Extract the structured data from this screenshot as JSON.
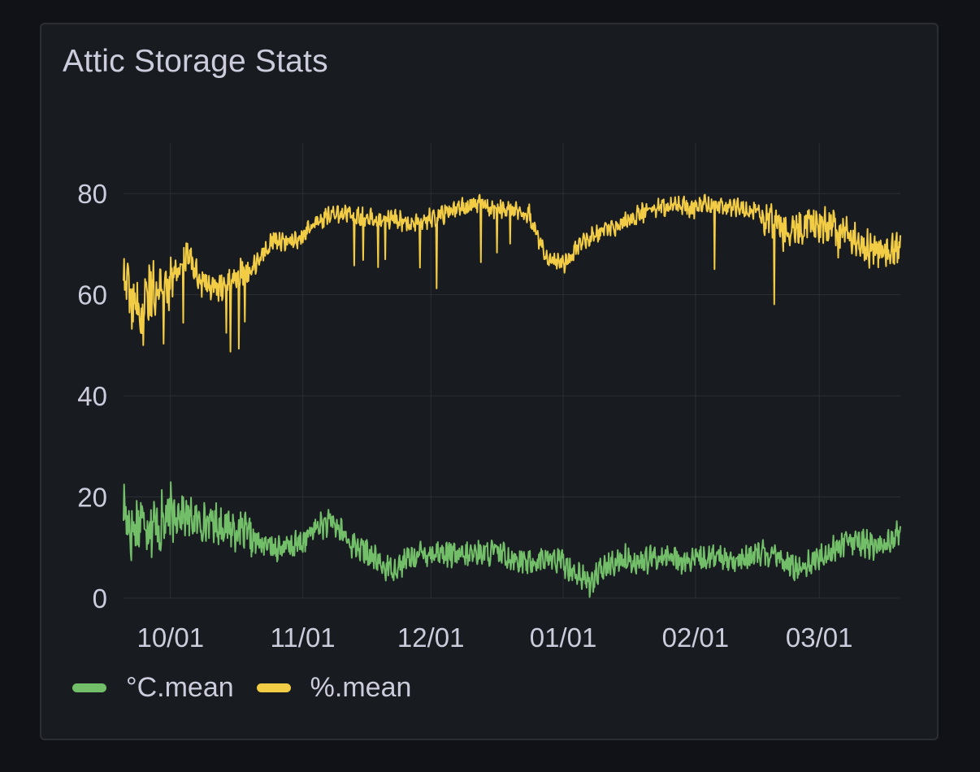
{
  "panel": {
    "title": "Attic Storage Stats"
  },
  "theme": {
    "background": "#111217",
    "panel_background": "#181b1f",
    "grid_color": "#2c2e33",
    "text_color": "#ccccdc"
  },
  "chart_data": {
    "type": "line",
    "title": "Attic Storage Stats",
    "xlabel": "",
    "ylabel": "",
    "x_start": "2023-09-20",
    "x_end": "2024-03-20",
    "x_ticks": [
      "10/01",
      "11/01",
      "12/01",
      "01/01",
      "02/01",
      "03/01"
    ],
    "x_tick_dates": [
      "2023-10-01",
      "2023-11-01",
      "2023-12-01",
      "2024-01-01",
      "2024-02-01",
      "2024-03-01"
    ],
    "y_ticks": [
      0,
      20,
      40,
      60,
      80
    ],
    "ylim": [
      0,
      90
    ],
    "grid": true,
    "legend_position": "bottom-left",
    "series": [
      {
        "name": "°C.mean",
        "color": "#73bf69",
        "x": [
          "2023-09-20",
          "2023-09-22",
          "2023-09-24",
          "2023-09-26",
          "2023-09-28",
          "2023-10-01",
          "2023-10-03",
          "2023-10-05",
          "2023-10-08",
          "2023-10-11",
          "2023-10-15",
          "2023-10-18",
          "2023-10-21",
          "2023-10-25",
          "2023-10-29",
          "2023-11-01",
          "2023-11-04",
          "2023-11-08",
          "2023-11-12",
          "2023-11-16",
          "2023-11-20",
          "2023-11-23",
          "2023-11-26",
          "2023-11-30",
          "2023-12-04",
          "2023-12-08",
          "2023-12-12",
          "2023-12-16",
          "2023-12-20",
          "2023-12-24",
          "2023-12-28",
          "2024-01-01",
          "2024-01-04",
          "2024-01-07",
          "2024-01-11",
          "2024-01-15",
          "2024-01-19",
          "2024-01-23",
          "2024-01-27",
          "2024-01-31",
          "2024-02-04",
          "2024-02-08",
          "2024-02-12",
          "2024-02-16",
          "2024-02-20",
          "2024-02-24",
          "2024-02-28",
          "2024-03-03",
          "2024-03-07",
          "2024-03-11",
          "2024-03-15",
          "2024-03-20"
        ],
        "values": [
          18,
          13,
          16,
          15,
          14,
          16,
          17,
          16,
          15,
          15,
          14,
          13,
          11,
          10,
          10,
          11,
          14,
          15,
          11,
          9,
          6,
          6,
          8,
          9,
          9,
          8,
          9,
          9,
          8,
          7,
          8,
          7,
          5,
          3,
          6,
          8,
          7,
          8,
          8,
          7,
          8,
          8,
          7,
          9,
          8,
          6,
          7,
          9,
          11,
          11,
          10,
          13
        ]
      },
      {
        "name": "%.mean",
        "color": "#f2cc45",
        "x": [
          "2023-09-20",
          "2023-09-22",
          "2023-09-24",
          "2023-09-26",
          "2023-09-28",
          "2023-10-01",
          "2023-10-03",
          "2023-10-05",
          "2023-10-08",
          "2023-10-11",
          "2023-10-15",
          "2023-10-18",
          "2023-10-21",
          "2023-10-25",
          "2023-10-29",
          "2023-11-01",
          "2023-11-04",
          "2023-11-08",
          "2023-11-12",
          "2023-11-16",
          "2023-11-20",
          "2023-11-23",
          "2023-11-26",
          "2023-11-30",
          "2023-12-04",
          "2023-12-08",
          "2023-12-12",
          "2023-12-16",
          "2023-12-20",
          "2023-12-24",
          "2023-12-28",
          "2024-01-01",
          "2024-01-04",
          "2024-01-07",
          "2024-01-11",
          "2024-01-15",
          "2024-01-19",
          "2024-01-23",
          "2024-01-27",
          "2024-01-31",
          "2024-02-04",
          "2024-02-08",
          "2024-02-12",
          "2024-02-16",
          "2024-02-20",
          "2024-02-24",
          "2024-02-28",
          "2024-03-03",
          "2024-03-07",
          "2024-03-11",
          "2024-03-15",
          "2024-03-20"
        ],
        "values": [
          65,
          58,
          55,
          60,
          62,
          63,
          66,
          68,
          63,
          61,
          62,
          65,
          66,
          71,
          70,
          72,
          74,
          76,
          76,
          75,
          75,
          75,
          74,
          75,
          76,
          77,
          78,
          77,
          77,
          76,
          67,
          66,
          69,
          71,
          73,
          74,
          76,
          77,
          78,
          77,
          78,
          77,
          77,
          76,
          74,
          73,
          74,
          74,
          72,
          70,
          68,
          69
        ]
      }
    ]
  },
  "legend": {
    "items": [
      {
        "label": "°C.mean",
        "color": "#73bf69"
      },
      {
        "label": "%.mean",
        "color": "#f2cc45"
      }
    ]
  }
}
